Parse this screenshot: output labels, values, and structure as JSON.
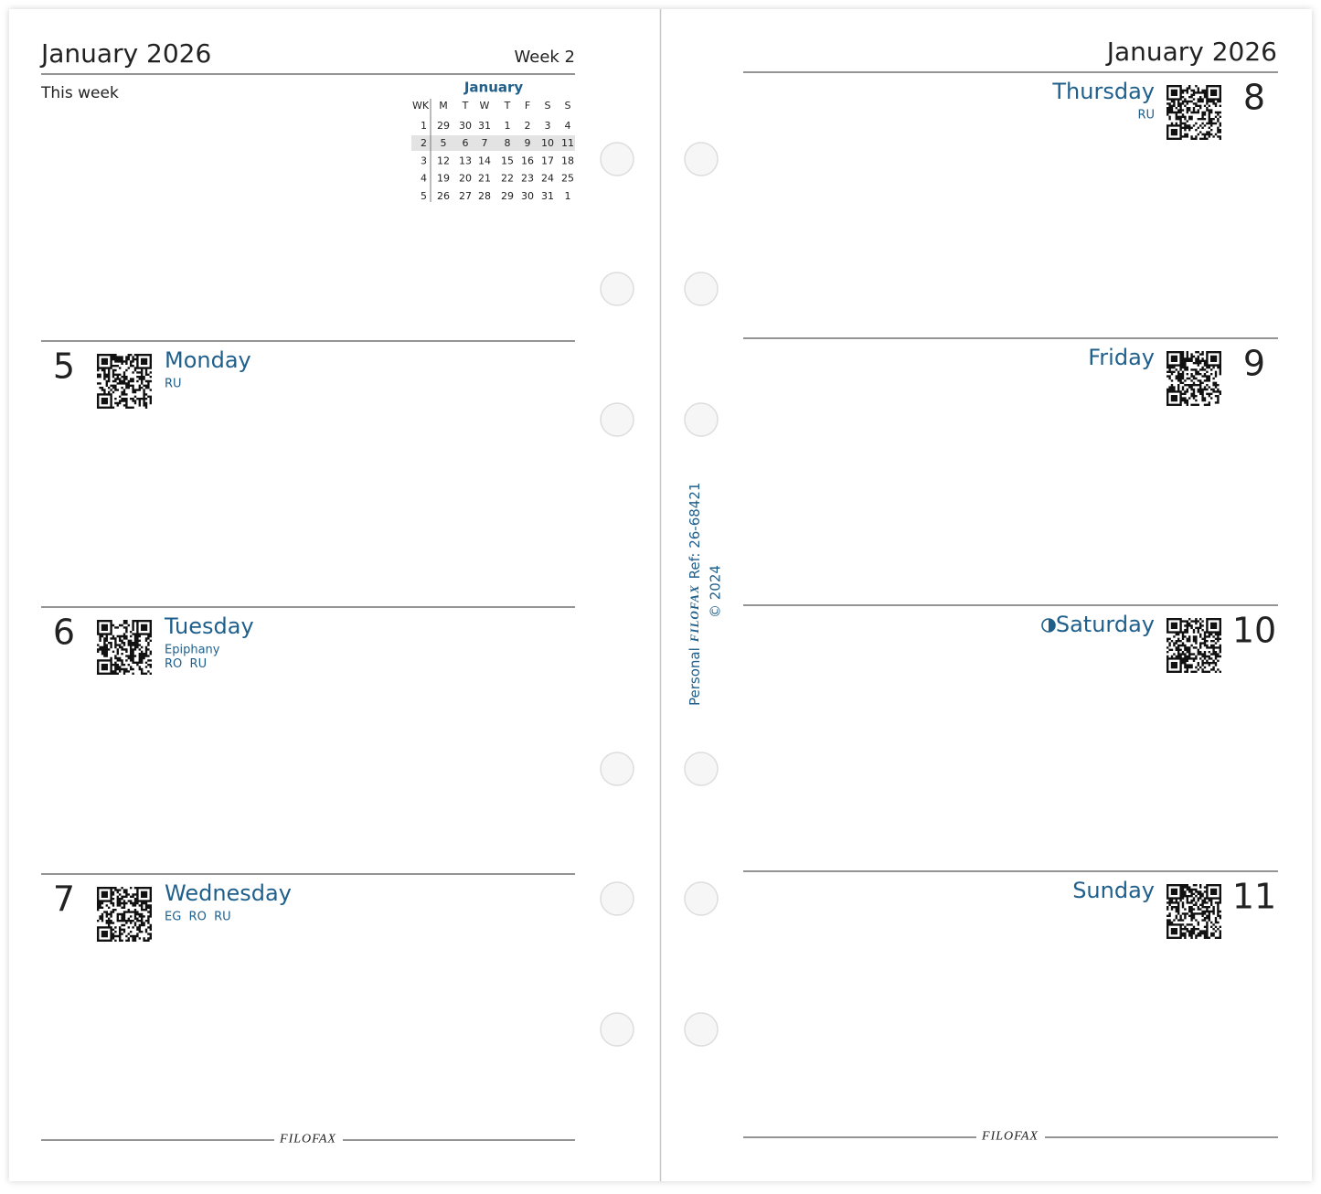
{
  "left_page": {
    "title": "January 2026",
    "week": "Week 2",
    "this_week": "This week",
    "footer_logo": "filofax"
  },
  "mini_calendar": {
    "month": "January",
    "headers": [
      "WK",
      "M",
      "T",
      "W",
      "T",
      "F",
      "S",
      "S"
    ],
    "rows": [
      [
        "1",
        "29",
        "30",
        "31",
        "1",
        "2",
        "3",
        "4"
      ],
      [
        "2",
        "5",
        "6",
        "7",
        "8",
        "9",
        "10",
        "11"
      ],
      [
        "3",
        "12",
        "13",
        "14",
        "15",
        "16",
        "17",
        "18"
      ],
      [
        "4",
        "19",
        "20",
        "21",
        "22",
        "23",
        "24",
        "25"
      ],
      [
        "5",
        "26",
        "27",
        "28",
        "29",
        "30",
        "31",
        "1"
      ]
    ]
  },
  "days": [
    {
      "number": "5",
      "name": "Monday",
      "notes": [
        "RU"
      ]
    },
    {
      "number": "6",
      "name": "Tuesday",
      "notes": [
        "Epiphany",
        "RO  RU"
      ]
    },
    {
      "number": "7",
      "name": "Wednesday",
      "notes": [
        "EG  RO  RU"
      ]
    },
    {
      "number": "8",
      "name": "Thursday",
      "notes": [
        "RU"
      ]
    },
    {
      "number": "9",
      "name": "Friday",
      "notes": []
    },
    {
      "number": "10",
      "name": "Saturday",
      "notes": []
    },
    {
      "number": "11",
      "name": "Sunday",
      "notes": []
    }
  ],
  "right_page": {
    "title": "January 2026",
    "footer_logo": "filofax"
  },
  "spine": {
    "product": "Personal",
    "brand": "filofax",
    "ref": "Ref: 26-68421",
    "copyright": "© 2024"
  }
}
